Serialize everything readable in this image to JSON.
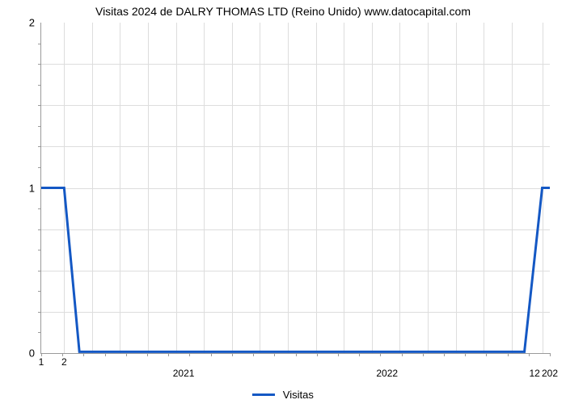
{
  "chart": {
    "type": "line",
    "title": "Visitas 2024 de DALRY THOMAS LTD (Reino Unido) www.datocapital.com",
    "title_fontsize": 14,
    "title_color": "#000000",
    "background_color": "#ffffff",
    "grid_color": "#dddddd",
    "axis_color": "#9a9a9a",
    "line_color": "#1458c4",
    "line_width": 3,
    "x_axis": {
      "labels_major": [
        "2021",
        "2022"
      ],
      "labels_major_pos_pct": [
        28,
        68
      ],
      "labels_end": [
        "1",
        "2",
        "12",
        "202"
      ],
      "labels_end_pos_pct": [
        0,
        4.5,
        97,
        100
      ],
      "minor_ticks_count": 24,
      "grid_v_pos_pct": [
        4.5,
        10,
        15.5,
        21,
        26.5,
        32,
        37.5,
        43,
        48.5,
        54,
        59.5,
        65,
        70.5,
        76,
        81.5,
        87,
        92.5,
        98.5
      ]
    },
    "y_axis": {
      "min": 0,
      "max": 2,
      "labels": [
        "0",
        "1",
        "2"
      ],
      "labels_pos_pct": [
        100,
        50,
        0
      ],
      "grid_h_pos_pct": [
        12.5,
        25,
        37.5,
        50,
        62.5,
        75,
        87.5
      ],
      "minor_ticks_pos_pct": [
        6.25,
        12.5,
        18.75,
        25,
        31.25,
        37.5,
        43.75,
        56.25,
        62.5,
        68.75,
        75,
        81.25,
        87.5,
        93.75
      ]
    },
    "series": {
      "name": "Visitas",
      "points_pct": [
        [
          0,
          50
        ],
        [
          4.5,
          50
        ],
        [
          7.5,
          99.6
        ],
        [
          95,
          99.6
        ],
        [
          98.5,
          50
        ],
        [
          100,
          50
        ]
      ]
    },
    "legend": {
      "label": "Visitas",
      "color": "#1458c4"
    }
  }
}
